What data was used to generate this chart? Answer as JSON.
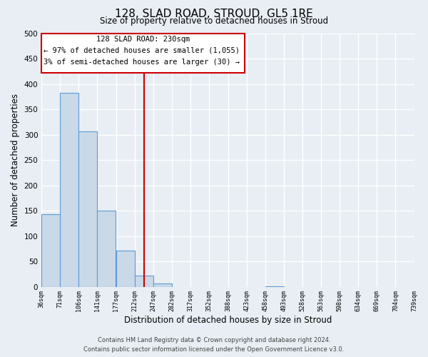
{
  "title": "128, SLAD ROAD, STROUD, GL5 1RE",
  "subtitle": "Size of property relative to detached houses in Stroud",
  "xlabel": "Distribution of detached houses by size in Stroud",
  "ylabel": "Number of detached properties",
  "bin_edges": [
    36,
    71,
    106,
    141,
    177,
    212,
    247,
    282,
    317,
    352,
    388,
    423,
    458,
    493,
    528,
    563,
    598,
    634,
    669,
    704,
    739
  ],
  "bar_heights": [
    143,
    383,
    306,
    150,
    71,
    22,
    7,
    0,
    0,
    0,
    0,
    0,
    1,
    0,
    0,
    0,
    0,
    0,
    0,
    0
  ],
  "bar_color": "#c9d9e8",
  "bar_edge_color": "#5b9bd5",
  "property_line_x": 230,
  "property_line_color": "#cc0000",
  "ylim": [
    0,
    500
  ],
  "annotation_title": "128 SLAD ROAD: 230sqm",
  "annotation_line1": "← 97% of detached houses are smaller (1,055)",
  "annotation_line2": "3% of semi-detached houses are larger (30) →",
  "annotation_box_color": "#cc0000",
  "footer_line1": "Contains HM Land Registry data © Crown copyright and database right 2024.",
  "footer_line2": "Contains public sector information licensed under the Open Government Licence v3.0.",
  "tick_labels": [
    "36sqm",
    "71sqm",
    "106sqm",
    "141sqm",
    "177sqm",
    "212sqm",
    "247sqm",
    "282sqm",
    "317sqm",
    "352sqm",
    "388sqm",
    "423sqm",
    "458sqm",
    "493sqm",
    "528sqm",
    "563sqm",
    "598sqm",
    "634sqm",
    "669sqm",
    "704sqm",
    "739sqm"
  ],
  "yticks": [
    0,
    50,
    100,
    150,
    200,
    250,
    300,
    350,
    400,
    450,
    500
  ],
  "background_color": "#e8eef4",
  "plot_bg_color": "#e8eef4",
  "grid_color": "#ffffff"
}
